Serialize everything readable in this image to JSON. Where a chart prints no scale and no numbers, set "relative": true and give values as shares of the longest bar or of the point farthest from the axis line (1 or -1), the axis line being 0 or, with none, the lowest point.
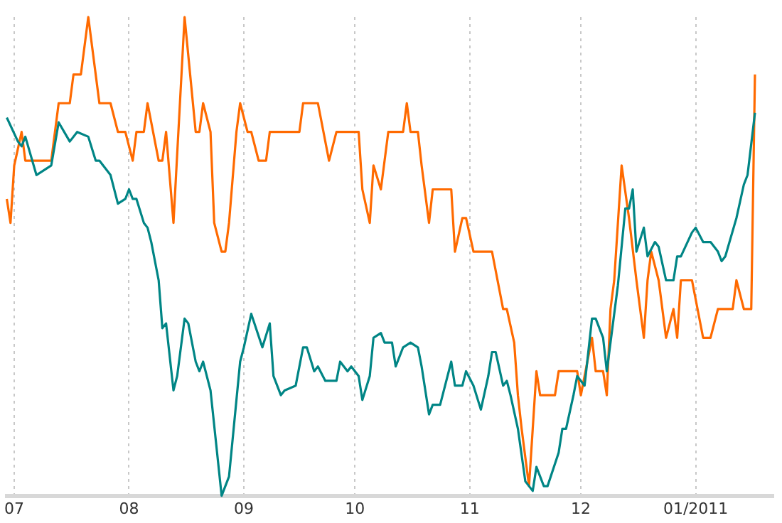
{
  "chart_data": {
    "type": "line",
    "relative": true,
    "grid": "x",
    "legend": false,
    "xlim": [
      "2010-06-29",
      "2011-01-22"
    ],
    "xticks": [
      {
        "value": "2010-07-01",
        "label": "07"
      },
      {
        "value": "2010-08-01",
        "label": "08"
      },
      {
        "value": "2010-09-01",
        "label": "09"
      },
      {
        "value": "2010-10-01",
        "label": "10"
      },
      {
        "value": "2010-11-01",
        "label": "11"
      },
      {
        "value": "2010-12-01",
        "label": "12"
      },
      {
        "value": "2011-01-01",
        "label": "01/2011"
      }
    ],
    "series": [
      {
        "color": "#ff6a00",
        "x": [
          "2010-06-29",
          "2010-06-30",
          "2010-07-01",
          "2010-07-03",
          "2010-07-04",
          "2010-07-11",
          "2010-07-13",
          "2010-07-16",
          "2010-07-17",
          "2010-07-19",
          "2010-07-21",
          "2010-07-24",
          "2010-07-27",
          "2010-07-29",
          "2010-07-31",
          "2010-08-02",
          "2010-08-03",
          "2010-08-05",
          "2010-08-06",
          "2010-08-09",
          "2010-08-10",
          "2010-08-11",
          "2010-08-13",
          "2010-08-16",
          "2010-08-19",
          "2010-08-20",
          "2010-08-21",
          "2010-08-23",
          "2010-08-24",
          "2010-08-26",
          "2010-08-27",
          "2010-08-28",
          "2010-08-30",
          "2010-08-31",
          "2010-09-02",
          "2010-09-03",
          "2010-09-05",
          "2010-09-07",
          "2010-09-08",
          "2010-09-10",
          "2010-09-16",
          "2010-09-17",
          "2010-09-21",
          "2010-09-24",
          "2010-09-26",
          "2010-10-02",
          "2010-10-03",
          "2010-10-05",
          "2010-10-06",
          "2010-10-08",
          "2010-10-10",
          "2010-10-14",
          "2010-10-15",
          "2010-10-16",
          "2010-10-18",
          "2010-10-19",
          "2010-10-21",
          "2010-10-22",
          "2010-10-27",
          "2010-10-28",
          "2010-10-30",
          "2010-10-31",
          "2010-11-02",
          "2010-11-07",
          "2010-11-10",
          "2010-11-11",
          "2010-11-13",
          "2010-11-14",
          "2010-11-15",
          "2010-11-17",
          "2010-11-18",
          "2010-11-19",
          "2010-11-20",
          "2010-11-24",
          "2010-11-25",
          "2010-11-30",
          "2010-12-01",
          "2010-12-04",
          "2010-12-05",
          "2010-12-07",
          "2010-12-08",
          "2010-12-09",
          "2010-12-10",
          "2010-12-12",
          "2010-12-14",
          "2010-12-16",
          "2010-12-18",
          "2010-12-19",
          "2010-12-20",
          "2010-12-22",
          "2010-12-24",
          "2010-12-26",
          "2010-12-27",
          "2010-12-28",
          "2010-12-31",
          "2011-01-03",
          "2011-01-05",
          "2011-01-07",
          "2011-01-11",
          "2011-01-12",
          "2011-01-14",
          "2011-01-16",
          "2011-01-17"
        ],
        "values": [
          0.62,
          0.57,
          0.69,
          0.76,
          0.7,
          0.7,
          0.82,
          0.82,
          0.88,
          0.88,
          1.0,
          0.82,
          0.82,
          0.76,
          0.76,
          0.7,
          0.76,
          0.76,
          0.82,
          0.7,
          0.7,
          0.76,
          0.57,
          1.0,
          0.76,
          0.76,
          0.82,
          0.76,
          0.57,
          0.51,
          0.51,
          0.57,
          0.76,
          0.82,
          0.76,
          0.76,
          0.7,
          0.7,
          0.76,
          0.76,
          0.76,
          0.82,
          0.82,
          0.7,
          0.76,
          0.76,
          0.64,
          0.57,
          0.69,
          0.64,
          0.76,
          0.76,
          0.82,
          0.76,
          0.76,
          0.69,
          0.57,
          0.64,
          0.64,
          0.51,
          0.58,
          0.58,
          0.51,
          0.51,
          0.39,
          0.39,
          0.32,
          0.21,
          0.14,
          0.02,
          0.14,
          0.26,
          0.21,
          0.21,
          0.26,
          0.26,
          0.21,
          0.33,
          0.26,
          0.26,
          0.21,
          0.39,
          0.45,
          0.69,
          0.58,
          0.45,
          0.33,
          0.45,
          0.51,
          0.45,
          0.33,
          0.39,
          0.33,
          0.45,
          0.45,
          0.33,
          0.33,
          0.39,
          0.39,
          0.45,
          0.39,
          0.39,
          0.88
        ]
      },
      {
        "color": "#008585",
        "x": [
          "2010-06-29",
          "2010-07-02",
          "2010-07-03",
          "2010-07-04",
          "2010-07-07",
          "2010-07-11",
          "2010-07-13",
          "2010-07-16",
          "2010-07-18",
          "2010-07-21",
          "2010-07-23",
          "2010-07-24",
          "2010-07-26",
          "2010-07-27",
          "2010-07-29",
          "2010-07-31",
          "2010-08-01",
          "2010-08-02",
          "2010-08-03",
          "2010-08-05",
          "2010-08-06",
          "2010-08-07",
          "2010-08-09",
          "2010-08-10",
          "2010-08-11",
          "2010-08-13",
          "2010-08-14",
          "2010-08-16",
          "2010-08-17",
          "2010-08-19",
          "2010-08-20",
          "2010-08-21",
          "2010-08-23",
          "2010-08-26",
          "2010-08-28",
          "2010-08-31",
          "2010-09-01",
          "2010-09-03",
          "2010-09-06",
          "2010-09-08",
          "2010-09-09",
          "2010-09-11",
          "2010-09-12",
          "2010-09-15",
          "2010-09-17",
          "2010-09-18",
          "2010-09-20",
          "2010-09-21",
          "2010-09-23",
          "2010-09-26",
          "2010-09-27",
          "2010-09-29",
          "2010-09-30",
          "2010-10-02",
          "2010-10-03",
          "2010-10-05",
          "2010-10-06",
          "2010-10-08",
          "2010-10-09",
          "2010-10-11",
          "2010-10-12",
          "2010-10-14",
          "2010-10-16",
          "2010-10-18",
          "2010-10-19",
          "2010-10-21",
          "2010-10-22",
          "2010-10-24",
          "2010-10-25",
          "2010-10-27",
          "2010-10-28",
          "2010-10-30",
          "2010-10-31",
          "2010-11-02",
          "2010-11-04",
          "2010-11-06",
          "2010-11-07",
          "2010-11-08",
          "2010-11-10",
          "2010-11-11",
          "2010-11-12",
          "2010-11-14",
          "2010-11-16",
          "2010-11-17",
          "2010-11-18",
          "2010-11-19",
          "2010-11-21",
          "2010-11-22",
          "2010-11-25",
          "2010-11-26",
          "2010-11-27",
          "2010-11-29",
          "2010-11-30",
          "2010-12-02",
          "2010-12-04",
          "2010-12-05",
          "2010-12-07",
          "2010-12-08",
          "2010-12-11",
          "2010-12-13",
          "2010-12-14",
          "2010-12-15",
          "2010-12-16",
          "2010-12-18",
          "2010-12-19",
          "2010-12-21",
          "2010-12-22",
          "2010-12-24",
          "2010-12-26",
          "2010-12-27",
          "2010-12-28",
          "2010-12-31",
          "2011-01-01",
          "2011-01-03",
          "2011-01-05",
          "2011-01-07",
          "2011-01-08",
          "2011-01-09",
          "2011-01-12",
          "2011-01-14",
          "2011-01-15",
          "2011-01-17"
        ],
        "values": [
          0.79,
          0.74,
          0.73,
          0.75,
          0.67,
          0.69,
          0.78,
          0.74,
          0.76,
          0.75,
          0.7,
          0.7,
          0.68,
          0.67,
          0.61,
          0.62,
          0.64,
          0.62,
          0.62,
          0.57,
          0.56,
          0.53,
          0.45,
          0.35,
          0.36,
          0.22,
          0.25,
          0.37,
          0.36,
          0.28,
          0.26,
          0.28,
          0.22,
          0.0,
          0.04,
          0.28,
          0.31,
          0.38,
          0.31,
          0.36,
          0.25,
          0.21,
          0.22,
          0.23,
          0.31,
          0.31,
          0.26,
          0.27,
          0.24,
          0.24,
          0.28,
          0.26,
          0.27,
          0.25,
          0.2,
          0.25,
          0.33,
          0.34,
          0.32,
          0.32,
          0.27,
          0.31,
          0.32,
          0.31,
          0.27,
          0.17,
          0.19,
          0.19,
          0.22,
          0.28,
          0.23,
          0.23,
          0.26,
          0.23,
          0.18,
          0.25,
          0.3,
          0.3,
          0.23,
          0.24,
          0.21,
          0.14,
          0.03,
          0.02,
          0.01,
          0.06,
          0.02,
          0.02,
          0.09,
          0.14,
          0.14,
          0.21,
          0.25,
          0.23,
          0.37,
          0.37,
          0.33,
          0.26,
          0.44,
          0.6,
          0.6,
          0.64,
          0.51,
          0.56,
          0.5,
          0.53,
          0.52,
          0.45,
          0.45,
          0.5,
          0.5,
          0.55,
          0.56,
          0.53,
          0.53,
          0.51,
          0.49,
          0.5,
          0.58,
          0.65,
          0.67,
          0.8
        ]
      }
    ]
  }
}
